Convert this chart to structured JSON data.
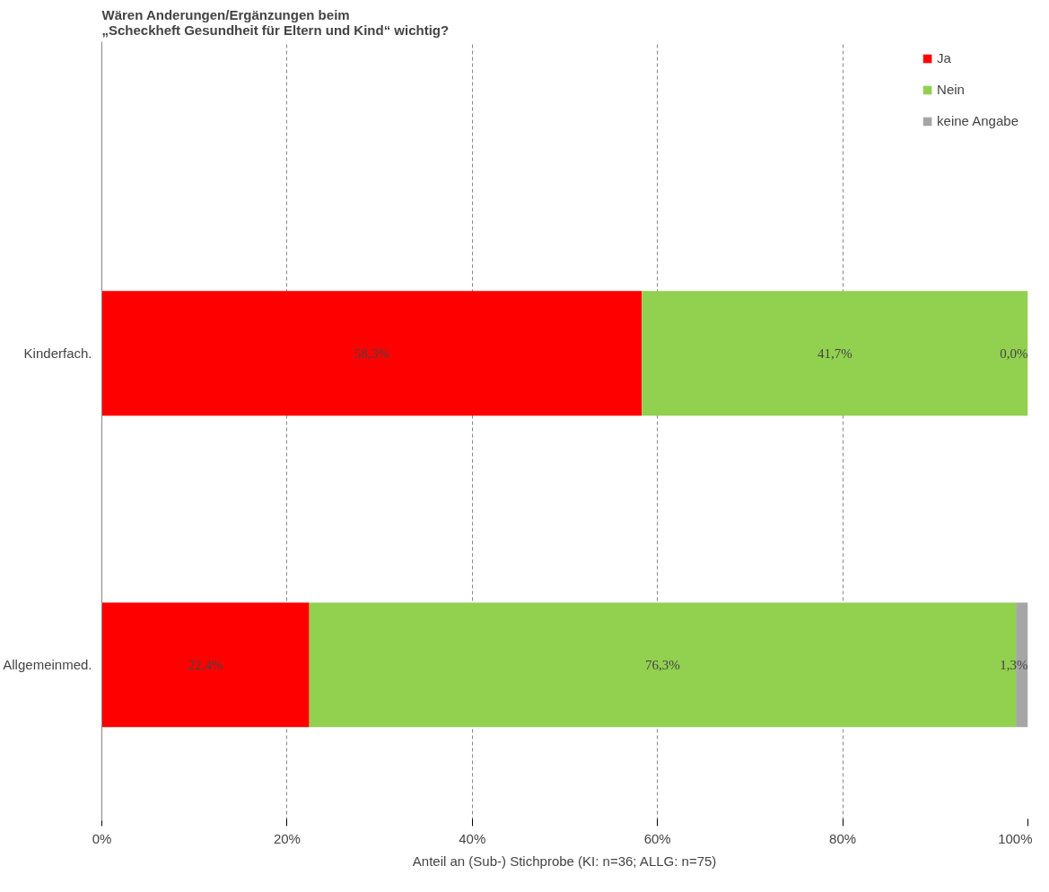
{
  "chart_data": {
    "type": "bar",
    "orientation": "horizontal",
    "stacked": true,
    "title": "Wären Anderungen/Ergänzungen beim\n „Scheckheft Gesundheit für Eltern und Kind“  wichtig?",
    "xlabel": "Anteil an (Sub-) Stichprobe (KI: n=36; ALLG: n=75)",
    "categories": [
      "Kinderfach.",
      "Allgemeinmed."
    ],
    "series": [
      {
        "name": "Ja",
        "color": "#ff0000",
        "values": [
          58.3,
          22.4
        ],
        "value_labels": [
          "58,3%",
          "22,4%"
        ]
      },
      {
        "name": "Nein",
        "color": "#92d050",
        "values": [
          41.7,
          76.3
        ],
        "value_labels": [
          "41,7%",
          "76,3%"
        ]
      },
      {
        "name": "keine Angabe",
        "color": "#a6a6a6",
        "values": [
          0.0,
          1.3
        ],
        "value_labels": [
          "0,0%",
          "1,3%"
        ]
      }
    ],
    "xlim": [
      0,
      100
    ],
    "xticks": [
      {
        "value": 0,
        "label": "0%"
      },
      {
        "value": 20,
        "label": "20%"
      },
      {
        "value": 40,
        "label": "40%"
      },
      {
        "value": 60,
        "label": "60%"
      },
      {
        "value": 80,
        "label": "80%"
      },
      {
        "value": 100,
        "label": "100%"
      }
    ],
    "grid": "x",
    "legend": "top right"
  }
}
